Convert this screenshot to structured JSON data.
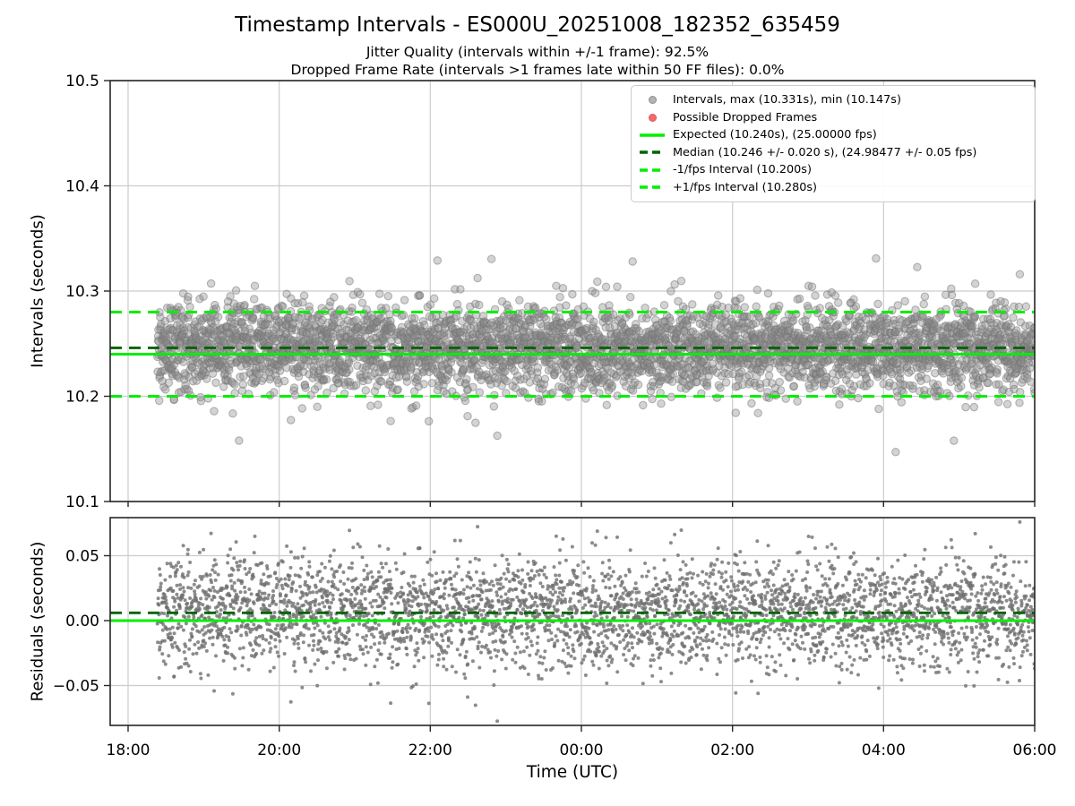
{
  "figure": {
    "title": "Timestamp Intervals - ES000U_20251008_182352_635459",
    "subtitle_jitter": "Jitter Quality (intervals within +/-1 frame): 92.5%",
    "subtitle_dropped": "Dropped Frame Rate (intervals >1 frames late within 50 FF files): 0.0%",
    "stats": {
      "jitter_quality_pct": 92.5,
      "dropped_frame_rate_pct": 0.0,
      "ff_files": 50
    }
  },
  "chart_data": [
    {
      "type": "scatter",
      "panel": "intervals",
      "ylabel": "Intervals (seconds)",
      "xlabel": "Time (UTC)",
      "ylim": [
        10.1,
        10.5
      ],
      "yticks": [
        {
          "value": 10.1,
          "label": "10.1"
        },
        {
          "value": 10.2,
          "label": "10.2"
        },
        {
          "value": 10.3,
          "label": "10.3"
        },
        {
          "value": 10.4,
          "label": "10.4"
        },
        {
          "value": 10.5,
          "label": "10.5"
        }
      ],
      "xlim_hours": [
        17.763,
        30.0
      ],
      "xticks": [
        {
          "hour": 18,
          "label": "18:00"
        },
        {
          "hour": 20,
          "label": "20:00"
        },
        {
          "hour": 22,
          "label": "22:00"
        },
        {
          "hour": 24,
          "label": "00:00"
        },
        {
          "hour": 26,
          "label": "02:00"
        },
        {
          "hour": 28,
          "label": "04:00"
        },
        {
          "hour": 30,
          "label": "06:00"
        }
      ],
      "grid": true,
      "legend_position": "upper right",
      "series": {
        "name": "Intervals",
        "marker": "circle",
        "color": "#8c8c8c",
        "edge_color": "#757575",
        "n_points": 4000,
        "start_hour": 18.39,
        "end_hour": 30.0,
        "median_s": 10.246,
        "std_s": 0.021,
        "outlier_fraction": 0.02,
        "outlier_std_s": 0.034,
        "min_s": 10.147,
        "max_s": 10.331,
        "seed": 1337,
        "pinned_outliers": [
          {
            "hour": 27.9,
            "value": 10.331
          },
          {
            "hour": 28.16,
            "value": 10.147
          }
        ]
      },
      "ref_lines": [
        {
          "name": "expected",
          "value": 10.24,
          "color": "#00ee00",
          "style": "solid",
          "label": "Expected (10.240s), (25.00000 fps)"
        },
        {
          "name": "median",
          "value": 10.246,
          "color": "#006400",
          "style": "dashed",
          "label": "Median (10.246 +/- 0.020 s), (24.98477 +/- 0.05 fps)"
        },
        {
          "name": "minus-1fps",
          "value": 10.2,
          "color": "#00ee00",
          "style": "dashed",
          "label": "-1/fps Interval (10.200s)"
        },
        {
          "name": "plus-1fps",
          "value": 10.28,
          "color": "#00ee00",
          "style": "dashed",
          "label": "+1/fps Interval (10.280s)"
        }
      ]
    },
    {
      "type": "scatter",
      "panel": "residuals",
      "ylabel": "Residuals (seconds)",
      "xlabel": "Time (UTC)",
      "ylim": [
        -0.0807,
        0.0793
      ],
      "yticks": [
        {
          "value": -0.05,
          "label": "−0.05"
        },
        {
          "value": 0.0,
          "label": "0.00"
        },
        {
          "value": 0.05,
          "label": "0.05"
        }
      ],
      "grid": true,
      "derived_from": "intervals",
      "expected_s": 10.24,
      "series": {
        "color": "#6f6f6f",
        "median_residual_s": 0.006
      },
      "ref_lines": [
        {
          "name": "expected",
          "value": 0.0,
          "color": "#00ee00",
          "style": "solid"
        },
        {
          "name": "median",
          "value": 0.006,
          "color": "#006400",
          "style": "dashed"
        }
      ]
    }
  ],
  "legend": {
    "items": [
      {
        "id": "intervals",
        "marker": "dot",
        "color": "#b3b3b3",
        "edge": "#8f8f8f",
        "label": "Intervals, max (10.331s), min (10.147s)"
      },
      {
        "id": "dropped-frames",
        "marker": "dot",
        "color": "#f26b6b",
        "edge": "#e35555",
        "label": "Possible Dropped Frames"
      },
      {
        "id": "expected",
        "marker": "solid-line",
        "color": "#00ee00",
        "edge": "",
        "label": "Expected (10.240s), (25.00000 fps)"
      },
      {
        "id": "median",
        "marker": "dashed-line",
        "color": "#006400",
        "edge": "",
        "label": "Median (10.246 +/- 0.020 s), (24.98477 +/- 0.05 fps)"
      },
      {
        "id": "minus-1fps",
        "marker": "dashed-line",
        "color": "#00ee00",
        "edge": "",
        "label": "-1/fps Interval (10.200s)"
      },
      {
        "id": "plus-1fps",
        "marker": "dashed-line",
        "color": "#00ee00",
        "edge": "",
        "label": "+1/fps Interval (10.280s)"
      }
    ]
  }
}
